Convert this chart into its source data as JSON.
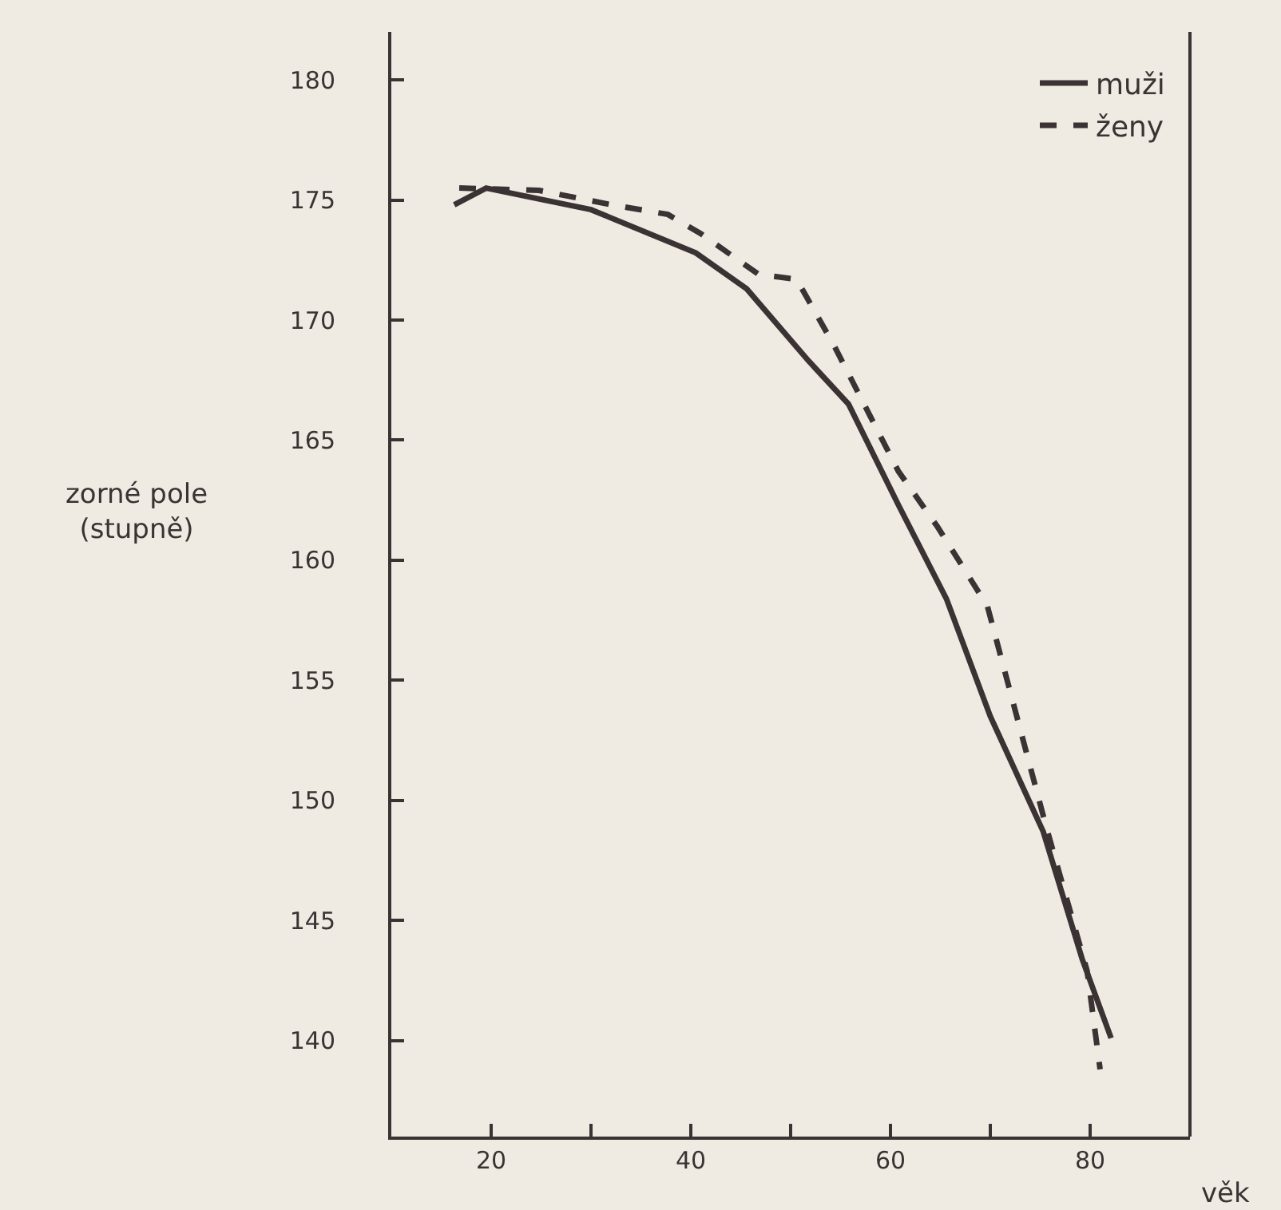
{
  "chart_data": {
    "type": "line",
    "xlabel": "věk",
    "ylabel": "zorné pole\n(stupně)",
    "xlim": [
      10,
      90
    ],
    "xticks": [
      20,
      {
        "value": 30,
        "label": null
      },
      40,
      {
        "value": 50,
        "label": null
      },
      60,
      {
        "value": 70,
        "label": null
      },
      80
    ],
    "ylim": [
      136,
      182
    ],
    "yticks": [
      140,
      145,
      150,
      155,
      160,
      165,
      170,
      175,
      180
    ],
    "grid": false,
    "legend": "top right",
    "marker": "none",
    "series": [
      {
        "name": "muži",
        "color": "#3b3333",
        "line_style": "solid",
        "x": [
          16.3,
          19.5,
          26.5,
          30.0,
          40.5,
          45.6,
          51.8,
          55.8,
          60.8,
          65.6,
          70.0,
          75.3,
          79.2,
          82.1
        ],
        "values": [
          174.8,
          175.5,
          174.9,
          174.6,
          172.8,
          171.3,
          168.3,
          166.5,
          162.3,
          158.4,
          153.5,
          148.7,
          143.4,
          140.1
        ]
      },
      {
        "name": "ženy",
        "color": "#3b3333",
        "line_style": "dashed",
        "x": [
          16.8,
          24.8,
          32.1,
          37.7,
          41.0,
          46.8,
          50.6,
          54.4,
          60.8,
          64.7,
          69.7,
          75.6,
          79.7,
          81.0
        ],
        "values": [
          175.5,
          175.4,
          174.8,
          174.4,
          173.6,
          171.9,
          171.7,
          168.9,
          163.7,
          161.4,
          158.1,
          148.9,
          142.9,
          138.8
        ]
      }
    ]
  }
}
